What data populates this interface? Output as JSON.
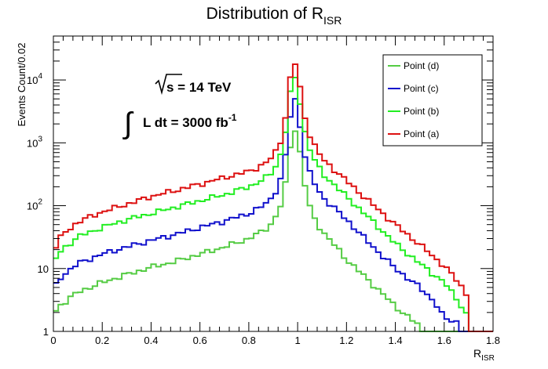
{
  "chart_data": {
    "type": "line",
    "title": "Distribution of R",
    "title_sub": "ISR",
    "xlabel": "R",
    "xlabel_sub": "ISR",
    "ylabel": "Events Count/0.02",
    "xlim": [
      0,
      1.8
    ],
    "ylim": [
      1,
      50000
    ],
    "yscale": "log",
    "x_ticks": [
      "0",
      "0.2",
      "0.4",
      "0.6",
      "0.8",
      "1",
      "1.2",
      "1.4",
      "1.6",
      "1.8"
    ],
    "y_ticks": [
      {
        "value": 1,
        "label": "1"
      },
      {
        "value": 10,
        "label": "10"
      },
      {
        "value": 100,
        "label": "10",
        "sup": "2"
      },
      {
        "value": 1000,
        "label": "10",
        "sup": "3"
      },
      {
        "value": 10000,
        "label": "10",
        "sup": "4"
      }
    ],
    "bin_width": 0.02,
    "annotation_energy": "s = 14 TeV",
    "annotation_lumi_int": "∫",
    "annotation_lumi": "L dt = 3000 fb",
    "annotation_lumi_sup": "-1",
    "legend_position": "top-right",
    "series": [
      {
        "name": "Point (d)",
        "color": "#55cc44",
        "anchors": [
          [
            0.0,
            1.8
          ],
          [
            0.02,
            2.5
          ],
          [
            0.05,
            3.0
          ],
          [
            0.1,
            4.2
          ],
          [
            0.2,
            6.0
          ],
          [
            0.3,
            8.0
          ],
          [
            0.4,
            10.5
          ],
          [
            0.5,
            13
          ],
          [
            0.6,
            17
          ],
          [
            0.7,
            22
          ],
          [
            0.8,
            30
          ],
          [
            0.86,
            40
          ],
          [
            0.9,
            55
          ],
          [
            0.94,
            120
          ],
          [
            0.96,
            400
          ],
          [
            0.98,
            1900
          ],
          [
            1.0,
            1400
          ],
          [
            1.02,
            350
          ],
          [
            1.04,
            130
          ],
          [
            1.06,
            70
          ],
          [
            1.1,
            40
          ],
          [
            1.2,
            14
          ],
          [
            1.3,
            6
          ],
          [
            1.4,
            2.5
          ],
          [
            1.5,
            1.2
          ]
        ]
      },
      {
        "name": "Point (c)",
        "color": "#1111cc",
        "anchors": [
          [
            0.0,
            4.5
          ],
          [
            0.02,
            6.5
          ],
          [
            0.05,
            8.5
          ],
          [
            0.1,
            12
          ],
          [
            0.2,
            17
          ],
          [
            0.3,
            22
          ],
          [
            0.4,
            28
          ],
          [
            0.5,
            35
          ],
          [
            0.6,
            45
          ],
          [
            0.7,
            57
          ],
          [
            0.8,
            75
          ],
          [
            0.86,
            100
          ],
          [
            0.9,
            140
          ],
          [
            0.94,
            320
          ],
          [
            0.96,
            1200
          ],
          [
            0.98,
            5800
          ],
          [
            1.0,
            4000
          ],
          [
            1.02,
            900
          ],
          [
            1.04,
            420
          ],
          [
            1.06,
            260
          ],
          [
            1.1,
            140
          ],
          [
            1.2,
            60
          ],
          [
            1.3,
            24
          ],
          [
            1.4,
            10
          ],
          [
            1.5,
            5
          ],
          [
            1.56,
            3
          ],
          [
            1.6,
            1.6
          ],
          [
            1.66,
            1.4
          ]
        ]
      },
      {
        "name": "Point (b)",
        "color": "#22ee22",
        "anchors": [
          [
            0.0,
            12
          ],
          [
            0.02,
            17
          ],
          [
            0.05,
            22
          ],
          [
            0.1,
            32
          ],
          [
            0.2,
            45
          ],
          [
            0.3,
            60
          ],
          [
            0.4,
            75
          ],
          [
            0.5,
            95
          ],
          [
            0.6,
            120
          ],
          [
            0.7,
            150
          ],
          [
            0.8,
            200
          ],
          [
            0.86,
            260
          ],
          [
            0.9,
            350
          ],
          [
            0.94,
            800
          ],
          [
            0.96,
            3000
          ],
          [
            0.98,
            12500
          ],
          [
            1.0,
            9000
          ],
          [
            1.02,
            2200
          ],
          [
            1.04,
            1000
          ],
          [
            1.06,
            620
          ],
          [
            1.1,
            330
          ],
          [
            1.2,
            140
          ],
          [
            1.3,
            60
          ],
          [
            1.4,
            25
          ],
          [
            1.5,
            12
          ],
          [
            1.6,
            6
          ],
          [
            1.66,
            3
          ],
          [
            1.7,
            1.6
          ]
        ]
      },
      {
        "name": "Point (a)",
        "color": "#dd1111",
        "anchors": [
          [
            0.0,
            18
          ],
          [
            0.02,
            28
          ],
          [
            0.05,
            38
          ],
          [
            0.1,
            55
          ],
          [
            0.2,
            80
          ],
          [
            0.3,
            105
          ],
          [
            0.4,
            140
          ],
          [
            0.5,
            175
          ],
          [
            0.6,
            220
          ],
          [
            0.7,
            280
          ],
          [
            0.8,
            350
          ],
          [
            0.86,
            450
          ],
          [
            0.9,
            600
          ],
          [
            0.94,
            1300
          ],
          [
            0.96,
            5000
          ],
          [
            0.98,
            22000
          ],
          [
            1.0,
            15000
          ],
          [
            1.02,
            3700
          ],
          [
            1.04,
            1700
          ],
          [
            1.06,
            1050
          ],
          [
            1.1,
            560
          ],
          [
            1.2,
            250
          ],
          [
            1.3,
            110
          ],
          [
            1.4,
            50
          ],
          [
            1.5,
            24
          ],
          [
            1.6,
            11
          ],
          [
            1.66,
            6
          ],
          [
            1.7,
            3.5
          ]
        ]
      }
    ],
    "legend": [
      "Point (d)",
      "Point (c)",
      "Point (b)",
      "Point (a)"
    ]
  }
}
